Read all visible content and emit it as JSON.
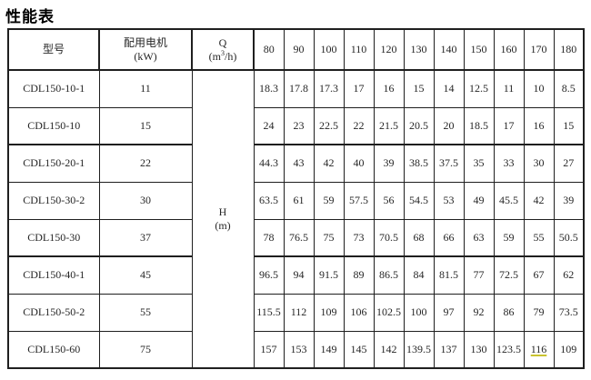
{
  "title": "性能表",
  "table": {
    "headers": {
      "model": "型号",
      "motor_line1": "配用电机",
      "motor_line2": "(kW)",
      "q_symbol": "Q",
      "q_unit_pre": "(m",
      "q_unit_sup": "3",
      "q_unit_post": "/h)",
      "h_symbol": "H",
      "h_unit": "(m)",
      "q_values": [
        "80",
        "90",
        "100",
        "110",
        "120",
        "130",
        "140",
        "150",
        "160",
        "170",
        "180"
      ]
    },
    "rows": [
      {
        "model": "CDL150-10-1",
        "kw": "11",
        "h": [
          "18.3",
          "17.8",
          "17.3",
          "17",
          "16",
          "15",
          "14",
          "12.5",
          "11",
          "10",
          "8.5"
        ]
      },
      {
        "model": "CDL150-10",
        "kw": "15",
        "h": [
          "24",
          "23",
          "22.5",
          "22",
          "21.5",
          "20.5",
          "20",
          "18.5",
          "17",
          "16",
          "15"
        ]
      },
      {
        "model": "CDL150-20-1",
        "kw": "22",
        "h": [
          "44.3",
          "43",
          "42",
          "40",
          "39",
          "38.5",
          "37.5",
          "35",
          "33",
          "30",
          "27"
        ]
      },
      {
        "model": "CDL150-30-2",
        "kw": "30",
        "h": [
          "63.5",
          "61",
          "59",
          "57.5",
          "56",
          "54.5",
          "53",
          "49",
          "45.5",
          "42",
          "39"
        ]
      },
      {
        "model": "CDL150-30",
        "kw": "37",
        "h": [
          "78",
          "76.5",
          "75",
          "73",
          "70.5",
          "68",
          "66",
          "63",
          "59",
          "55",
          "50.5"
        ]
      },
      {
        "model": "CDL150-40-1",
        "kw": "45",
        "h": [
          "96.5",
          "94",
          "91.5",
          "89",
          "86.5",
          "84",
          "81.5",
          "77",
          "72.5",
          "67",
          "62"
        ]
      },
      {
        "model": "CDL150-50-2",
        "kw": "55",
        "h": [
          "115.5",
          "112",
          "109",
          "106",
          "102.5",
          "100",
          "97",
          "92",
          "86",
          "79",
          "73.5"
        ]
      },
      {
        "model": "CDL150-60",
        "kw": "75",
        "h": [
          "157",
          "153",
          "149",
          "145",
          "142",
          "139.5",
          "137",
          "130",
          "123.5",
          "116",
          "109"
        ]
      }
    ],
    "highlight": {
      "row_index": 7,
      "col_index": 9,
      "value": "116",
      "underline_color": "#c9c32f"
    }
  }
}
